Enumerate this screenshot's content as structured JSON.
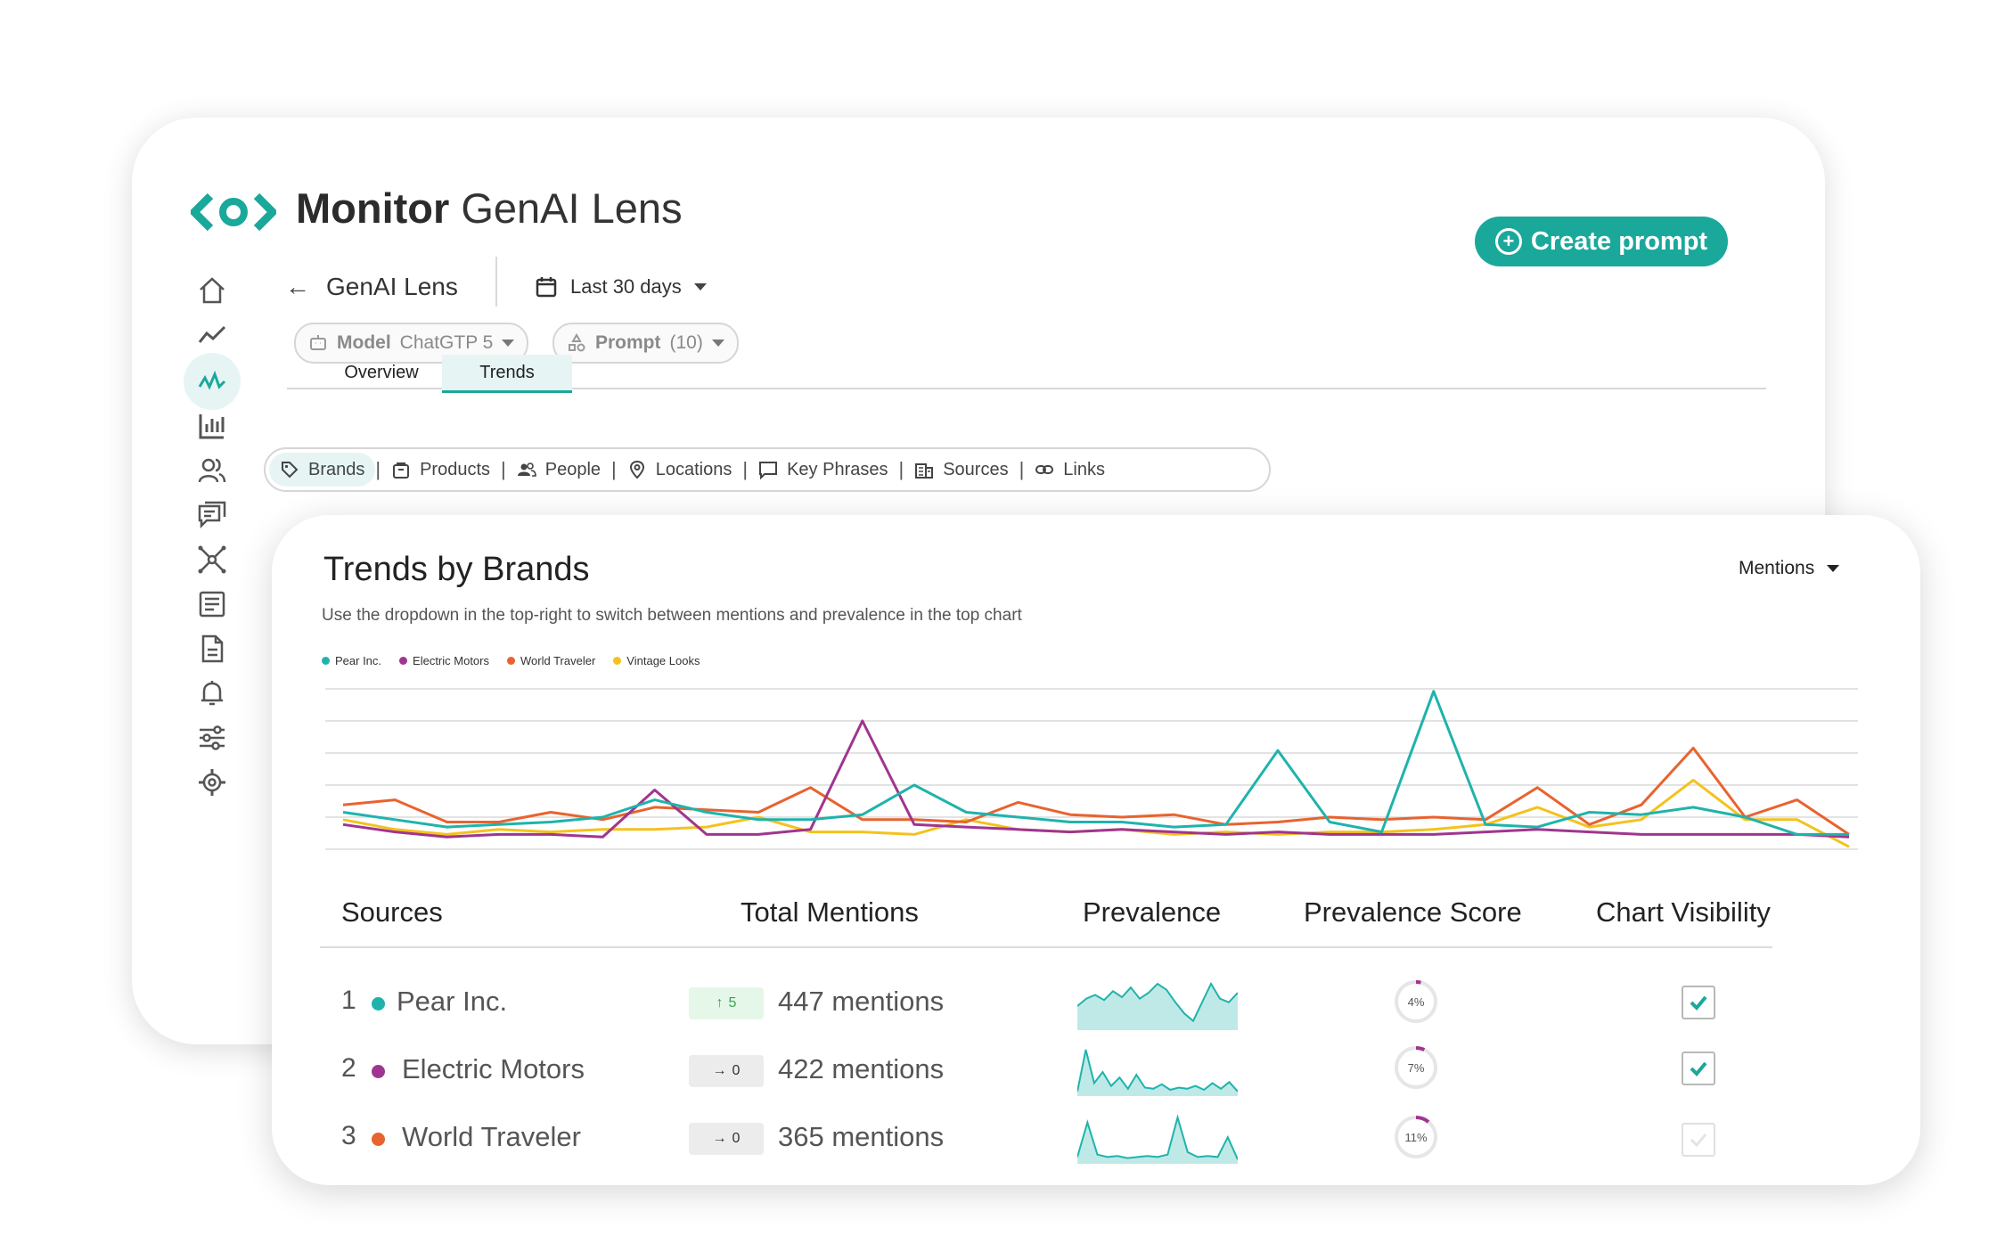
{
  "app": {
    "title_bold": "Monitor",
    "title_rest": "GenAI Lens",
    "create_label": "Create prompt"
  },
  "colors": {
    "accent": "#1aa89b",
    "pear": "#1fb3ac",
    "electric": "#a0358f",
    "world": "#e8632f",
    "vintage": "#f4c21c"
  },
  "sidebar": {
    "items": [
      "home-icon",
      "trend-icon",
      "analytics-icon",
      "bar-chart-icon",
      "users-icon",
      "chat-icon",
      "network-icon",
      "list-icon",
      "document-icon",
      "bell-icon",
      "sliders-icon",
      "settings-icon"
    ],
    "active_index": 2
  },
  "header": {
    "back_label": "GenAI Lens",
    "date_label": "Last 30 days"
  },
  "pills": {
    "model_key": "Model",
    "model_value": "ChatGTP 5",
    "prompt_key": "Prompt",
    "prompt_value": "(10)"
  },
  "tabs": {
    "overview": "Overview",
    "trends": "Trends"
  },
  "filters": [
    "Brands",
    "Products",
    "People",
    "Locations",
    "Key Phrases",
    "Sources",
    "Links"
  ],
  "trends": {
    "title": "Trends by Brands",
    "subtitle": "Use the dropdown in the top-right to switch between mentions and prevalence in the top chart",
    "metric": "Mentions"
  },
  "chart_data": {
    "type": "line",
    "x": [
      1,
      2,
      3,
      4,
      5,
      6,
      7,
      8,
      9,
      10,
      11,
      12,
      13,
      14,
      15,
      16,
      17,
      18,
      19,
      20,
      21,
      22,
      23,
      24,
      25,
      26,
      27,
      28,
      29,
      30
    ],
    "ylim": [
      0,
      130
    ],
    "grid": true,
    "legend": "top-left",
    "series": [
      {
        "name": "Pear Inc.",
        "values": [
          30,
          24,
          18,
          20,
          22,
          26,
          40,
          30,
          24,
          24,
          28,
          52,
          30,
          26,
          22,
          22,
          18,
          20,
          80,
          22,
          14,
          128,
          20,
          18,
          30,
          28,
          34,
          26,
          12,
          12
        ]
      },
      {
        "name": "Electric Motors",
        "values": [
          20,
          14,
          10,
          12,
          12,
          10,
          48,
          12,
          12,
          16,
          104,
          20,
          18,
          16,
          14,
          16,
          14,
          12,
          14,
          12,
          12,
          12,
          14,
          16,
          14,
          12,
          12,
          12,
          12,
          10
        ]
      },
      {
        "name": "World Traveler",
        "values": [
          36,
          40,
          22,
          22,
          30,
          24,
          34,
          32,
          30,
          50,
          24,
          24,
          22,
          38,
          28,
          26,
          28,
          20,
          22,
          26,
          24,
          26,
          24,
          50,
          20,
          36,
          82,
          26,
          40,
          12
        ]
      },
      {
        "name": "Vintage Looks",
        "values": [
          24,
          16,
          12,
          16,
          14,
          16,
          16,
          18,
          26,
          14,
          14,
          12,
          24,
          16,
          14,
          16,
          12,
          14,
          12,
          14,
          14,
          16,
          20,
          34,
          18,
          24,
          56,
          24,
          24,
          2
        ]
      }
    ]
  },
  "table": {
    "headers": {
      "sources": "Sources",
      "total": "Total Mentions",
      "prevalence": "Prevalence",
      "score": "Prevalence Score",
      "visibility": "Chart Visibility"
    },
    "rows": [
      {
        "rank": "1",
        "name": "Pear Inc.",
        "color": "#1fb3ac",
        "delta": "5",
        "delta_dir": "up",
        "mentions": "447 mentions",
        "score": "4%",
        "score_value": 4,
        "visible": true,
        "spark": [
          30,
          40,
          45,
          38,
          50,
          42,
          55,
          40,
          48,
          60,
          52,
          35,
          20,
          10,
          35,
          60,
          40,
          35,
          48
        ]
      },
      {
        "rank": "2",
        "name": "Electric Motors",
        "color": "#a0358f",
        "delta": "0",
        "delta_dir": "flat",
        "mentions": "422 mentions",
        "score": "7%",
        "score_value": 7,
        "visible": true,
        "spark": [
          5,
          80,
          20,
          40,
          15,
          30,
          10,
          35,
          12,
          10,
          18,
          8,
          12,
          10,
          15,
          8,
          20,
          10,
          22,
          5
        ]
      },
      {
        "rank": "3",
        "name": "World Traveler",
        "color": "#e8632f",
        "delta": "0",
        "delta_dir": "flat",
        "mentions": "365 mentions",
        "score": "11%",
        "score_value": 11,
        "visible": false,
        "spark": [
          10,
          80,
          15,
          10,
          12,
          8,
          10,
          12,
          10,
          15,
          90,
          20,
          10,
          12,
          10,
          50,
          5
        ]
      }
    ]
  }
}
